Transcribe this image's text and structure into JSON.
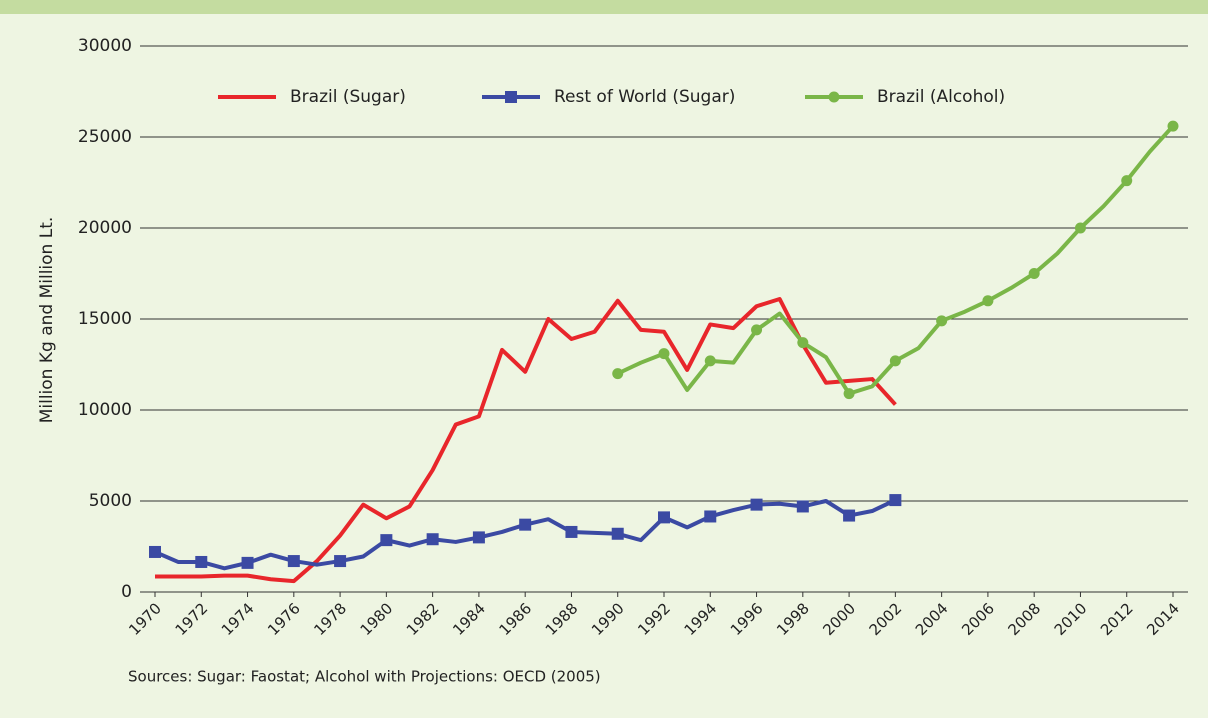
{
  "chart_data": {
    "type": "line",
    "y_label": "Million Kg and Million Lt.",
    "source": "Sources: Sugar: Faostat; Alcohol with Projections: OECD (2005)",
    "x": [
      1970,
      1971,
      1972,
      1973,
      1974,
      1975,
      1976,
      1977,
      1978,
      1979,
      1980,
      1981,
      1982,
      1983,
      1984,
      1985,
      1986,
      1987,
      1988,
      1989,
      1990,
      1991,
      1992,
      1993,
      1994,
      1995,
      1996,
      1997,
      1998,
      1999,
      2000,
      2001,
      2002,
      2003,
      2004,
      2005,
      2006,
      2007,
      2008,
      2009,
      2010,
      2011,
      2012,
      2013,
      2014
    ],
    "series": [
      {
        "name": "Brazil (Sugar)",
        "color": "#e8262b",
        "marker": "none",
        "values": [
          850,
          850,
          850,
          900,
          900,
          700,
          600,
          1700,
          3100,
          4800,
          4050,
          4700,
          6700,
          9200,
          9650,
          13300,
          12100,
          15000,
          13900,
          14300,
          16000,
          14400,
          14300,
          12200,
          14700,
          14500,
          15700,
          16100,
          13600,
          11500,
          11600,
          11700,
          10300,
          null,
          null,
          null,
          null,
          null,
          null,
          null,
          null,
          null,
          null,
          null,
          null
        ]
      },
      {
        "name": "Rest of World (Sugar)",
        "color": "#3b4aa3",
        "marker": "square",
        "values": [
          2200,
          1650,
          1650,
          1300,
          1600,
          2050,
          1700,
          1500,
          1700,
          1950,
          2850,
          2550,
          2900,
          2750,
          3000,
          3300,
          3700,
          4000,
          3300,
          3250,
          3200,
          2850,
          4100,
          3550,
          4150,
          4500,
          4800,
          4850,
          4700,
          5000,
          4200,
          4450,
          5050,
          null,
          null,
          null,
          null,
          null,
          null,
          null,
          null,
          null,
          null,
          null,
          null
        ]
      },
      {
        "name": "Brazil (Alcohol)",
        "color": "#7ab648",
        "marker": "circle",
        "values": [
          null,
          null,
          null,
          null,
          null,
          null,
          null,
          null,
          null,
          null,
          null,
          null,
          null,
          null,
          null,
          null,
          null,
          null,
          null,
          null,
          12000,
          12600,
          13100,
          11100,
          12700,
          12600,
          14400,
          15300,
          13700,
          12900,
          10900,
          11300,
          12700,
          13400,
          14900,
          15400,
          16000,
          16700,
          17500,
          18600,
          20000,
          21200,
          22600,
          24200,
          25600
        ]
      }
    ],
    "xlim": [
      1970,
      2014
    ],
    "xticks": [
      1970,
      1972,
      1974,
      1976,
      1978,
      1980,
      1982,
      1984,
      1986,
      1988,
      1990,
      1992,
      1994,
      1996,
      1998,
      2000,
      2002,
      2004,
      2006,
      2008,
      2010,
      2012,
      2014
    ],
    "ylim": [
      0,
      30000
    ],
    "yticks": [
      0,
      5000,
      10000,
      15000,
      20000,
      25000,
      30000
    ],
    "grid": true
  }
}
